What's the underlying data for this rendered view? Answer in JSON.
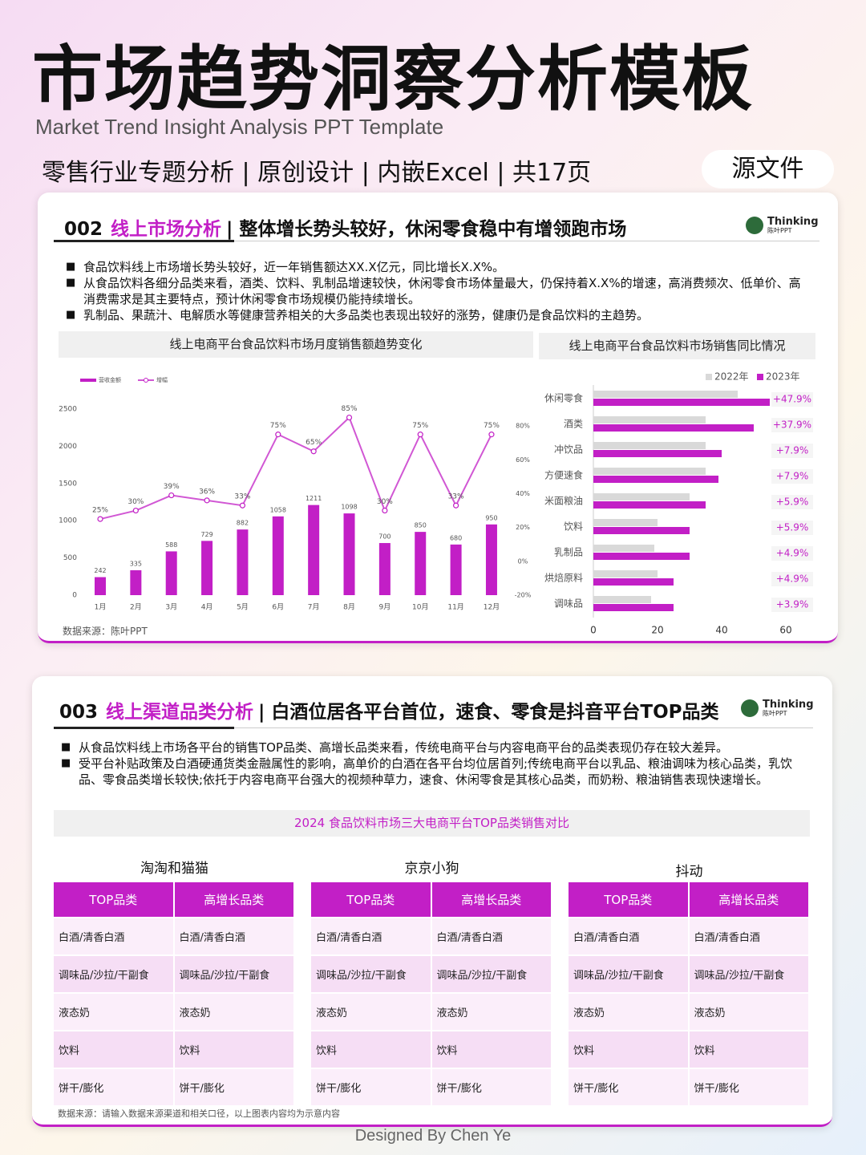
{
  "header": {
    "title": "市场趋势洞察分析模板",
    "subtitle": "Market Trend Insight Analysis PPT Template",
    "tagline": "零售行业专题分析 | 原创设计 | 内嵌Excel | 共17页",
    "badge": "源文件"
  },
  "logo": {
    "name": "Thinking",
    "sub": "陈叶PPT"
  },
  "slide1": {
    "number": "002",
    "section": "线上市场分析",
    "headline": "| 整体增长势头较好，休闲零食稳中有增领跑市场",
    "bullets": [
      "食品饮料线上市场增长势头较好，近一年销售额达XX.X亿元，同比增长X.X%。",
      "从食品饮料各细分品类来看，酒类、饮料、乳制品增速较快，休闲零食市场体量最大，仍保持着X.X%的增速，高消费频次、低单价、高消费需求是其主要特点，预计休闲零食市场规模仍能持续增长。",
      "乳制品、果蔬汁、电解质水等健康营养相关的大多品类也表现出较好的涨势，健康仍是食品饮料的主趋势。"
    ],
    "source": "数据来源：陈叶PPT"
  },
  "chart_data": [
    {
      "type": "combo",
      "title": "线上电商平台食品饮料市场月度销售额趋势变化",
      "categories": [
        "1月",
        "2月",
        "3月",
        "4月",
        "5月",
        "6月",
        "7月",
        "8月",
        "9月",
        "10月",
        "11月",
        "12月"
      ],
      "series": [
        {
          "name": "营收金额",
          "type": "bar",
          "color": "#c21fc6",
          "values": [
            242,
            335,
            588,
            729,
            882,
            1058,
            1211,
            1098,
            700,
            850,
            680,
            950
          ]
        },
        {
          "name": "增幅",
          "type": "line",
          "axis": "y2",
          "color": "#c21fc6",
          "values": [
            25,
            30,
            39,
            36,
            33,
            75,
            65,
            85,
            30,
            75,
            33,
            75
          ],
          "value_labels": [
            "25%",
            "30%",
            "39%",
            "36%",
            "33%",
            "75%",
            "65%",
            "85%",
            "30%",
            "75%",
            "33%",
            "75%"
          ]
        }
      ],
      "ylim": [
        0,
        2500
      ],
      "yticks": [
        0,
        500,
        1000,
        1500,
        2000,
        2500
      ],
      "y2lim": [
        -20,
        90
      ],
      "y2ticks": [
        {
          "value": -20,
          "label": "-20%"
        },
        {
          "value": 0,
          "label": "0%"
        },
        {
          "value": 20,
          "label": "20%"
        },
        {
          "value": 40,
          "label": "40%"
        },
        {
          "value": 60,
          "label": "60%"
        },
        {
          "value": 80,
          "label": "80%"
        }
      ],
      "grid": false,
      "legend": "top-left"
    },
    {
      "type": "barh",
      "title": "线上电商平台食品饮料市场销售同比情况",
      "categories": [
        "休闲零食",
        "酒类",
        "冲饮品",
        "方便速食",
        "米面粮油",
        "饮料",
        "乳制品",
        "烘焙原料",
        "调味品"
      ],
      "series": [
        {
          "name": "2022年",
          "color": "#d9d9d9",
          "values": [
            45,
            35,
            35,
            35,
            30,
            20,
            19,
            20,
            18
          ]
        },
        {
          "name": "2023年",
          "color": "#c21fc6",
          "values": [
            55,
            50,
            40,
            39,
            35,
            30,
            30,
            25,
            25
          ]
        }
      ],
      "growth_labels": [
        "+47.9%",
        "+37.9%",
        "+7.9%",
        "+7.9%",
        "+5.9%",
        "+5.9%",
        "+4.9%",
        "+4.9%",
        "+3.9%"
      ],
      "xlim": [
        0,
        60
      ],
      "xticks": [
        0,
        20,
        40,
        60
      ],
      "grid": false,
      "legend": "top-right"
    }
  ],
  "slide2": {
    "number": "003",
    "section": "线上渠道品类分析",
    "headline": "| 白酒位居各平台首位，速食、零食是抖音平台TOP品类",
    "bullets": [
      "从食品饮料线上市场各平台的销售TOP品类、高增长品类来看，传统电商平台与内容电商平台的品类表现仍存在较大差异。",
      "受平台补贴政策及白酒硬通货类金融属性的影响，高单价的白酒在各平台均位居首列;传统电商平台以乳品、粮油调味为核心品类，乳饮品、零食品类增长较快;依托于内容电商平台强大的视频种草力，速食、休闲零食是其核心品类，而奶粉、粮油销售表现快速增长。"
    ],
    "table_title": "2024 食品饮料市场三大电商平台TOP品类销售对比",
    "tables": [
      {
        "name": "淘淘和猫猫",
        "columns": [
          "TOP品类",
          "高增长品类"
        ],
        "rows": [
          [
            "白酒/清香白酒",
            "白酒/清香白酒"
          ],
          [
            "调味品/沙拉/干副食",
            "调味品/沙拉/干副食"
          ],
          [
            "液态奶",
            "液态奶"
          ],
          [
            "饮料",
            "饮料"
          ],
          [
            "饼干/膨化",
            "饼干/膨化"
          ]
        ]
      },
      {
        "name": "京京小狗",
        "columns": [
          "TOP品类",
          "高增长品类"
        ],
        "rows": [
          [
            "白酒/清香白酒",
            "白酒/清香白酒"
          ],
          [
            "调味品/沙拉/干副食",
            "调味品/沙拉/干副食"
          ],
          [
            "液态奶",
            "液态奶"
          ],
          [
            "饮料",
            "饮料"
          ],
          [
            "饼干/膨化",
            "饼干/膨化"
          ]
        ]
      },
      {
        "name": "抖动",
        "columns": [
          "TOP品类",
          "高增长品类"
        ],
        "rows": [
          [
            "白酒/清香白酒",
            "白酒/清香白酒"
          ],
          [
            "调味品/沙拉/干副食",
            "调味品/沙拉/干副食"
          ],
          [
            "液态奶",
            "液态奶"
          ],
          [
            "饮料",
            "饮料"
          ],
          [
            "饼干/膨化",
            "饼干/膨化"
          ]
        ]
      }
    ],
    "source": "数据来源：请输入数据来源渠道和相关口径，以上图表内容均为示意内容"
  },
  "footer": "Designed By Chen Ye"
}
